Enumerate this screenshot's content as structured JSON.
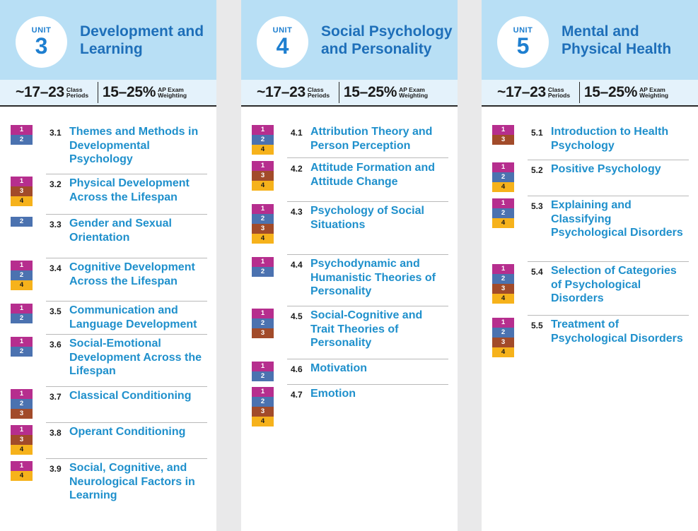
{
  "unit_word": "UNIT",
  "stats": {
    "periods_value": "~17–23",
    "periods_label": "Class Periods",
    "weight_value": "15–25%",
    "weight_label": "AP Exam Weighting"
  },
  "colors": {
    "skill_1": "#b62e8e",
    "skill_2": "#4b72b0",
    "skill_3": "#a24b2a",
    "skill_4": "#f6b21b",
    "header_bg": "#b8dff5",
    "title_blue": "#1f90cc"
  },
  "units": [
    {
      "number": "3",
      "title": "Development and Learning",
      "topics": [
        {
          "num": "3.1",
          "title": "Themes and Methods in Developmental Psychology",
          "skills": [
            "1",
            "2"
          ]
        },
        {
          "num": "3.2",
          "title": "Physical Development Across the Lifespan",
          "skills": [
            "1",
            "3",
            "4"
          ]
        },
        {
          "num": "3.3",
          "title": "Gender and Sexual Orientation",
          "skills": [
            "2"
          ]
        },
        {
          "num": "3.4",
          "title": "Cognitive Development Across the Lifespan",
          "skills": [
            "1",
            "2",
            "4"
          ]
        },
        {
          "num": "3.5",
          "title": "Communication and Language Development",
          "skills": [
            "1",
            "2"
          ]
        },
        {
          "num": "3.6",
          "title": "Social-Emotional Development Across the Lifespan",
          "skills": [
            "1",
            "2"
          ]
        },
        {
          "num": "3.7",
          "title": "Classical Conditioning",
          "skills": [
            "1",
            "2",
            "3"
          ]
        },
        {
          "num": "3.8",
          "title": "Operant Conditioning",
          "skills": [
            "1",
            "3",
            "4"
          ]
        },
        {
          "num": "3.9",
          "title": "Social, Cognitive, and Neurological Factors in Learning",
          "skills": [
            "1",
            "4"
          ]
        }
      ]
    },
    {
      "number": "4",
      "title": "Social Psychology and Personality",
      "topics": [
        {
          "num": "4.1",
          "title": "Attribution Theory and Person Perception",
          "skills": [
            "1",
            "2",
            "4"
          ]
        },
        {
          "num": "4.2",
          "title": "Attitude Formation and Attitude Change",
          "skills": [
            "1",
            "3",
            "4"
          ]
        },
        {
          "num": "4.3",
          "title": "Psychology of Social Situations",
          "skills": [
            "1",
            "2",
            "3",
            "4"
          ]
        },
        {
          "num": "4.4",
          "title": "Psychodynamic and Humanistic Theories of Personality",
          "skills": [
            "1",
            "2"
          ]
        },
        {
          "num": "4.5",
          "title": "Social-Cognitive and Trait Theories of Personality",
          "skills": [
            "1",
            "2",
            "3"
          ]
        },
        {
          "num": "4.6",
          "title": "Motivation",
          "skills": [
            "1",
            "2"
          ]
        },
        {
          "num": "4.7",
          "title": "Emotion",
          "skills": [
            "1",
            "2",
            "3",
            "4"
          ]
        }
      ]
    },
    {
      "number": "5",
      "title": "Mental and Physical Health",
      "topics": [
        {
          "num": "5.1",
          "title": "Introduction to Health Psychology",
          "skills": [
            "1",
            "3"
          ]
        },
        {
          "num": "5.2",
          "title": "Positive Psychology",
          "skills": [
            "1",
            "2",
            "4"
          ]
        },
        {
          "num": "5.3",
          "title": "Explaining and Classifying Psychological Disorders",
          "skills": [
            "1",
            "2",
            "4"
          ]
        },
        {
          "num": "5.4",
          "title": "Selection of Categories of Psychological Disorders",
          "skills": [
            "1",
            "2",
            "3",
            "4"
          ]
        },
        {
          "num": "5.5",
          "title": "Treatment of Psychological Disorders",
          "skills": [
            "1",
            "2",
            "3",
            "4"
          ]
        }
      ]
    }
  ]
}
